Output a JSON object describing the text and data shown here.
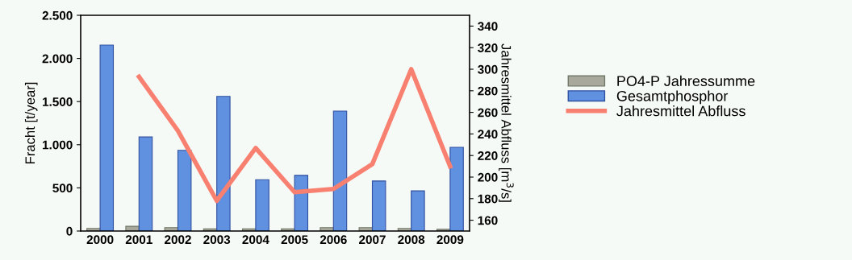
{
  "chart_data": {
    "type": "bar",
    "ylabel": "Fracht [t/year]",
    "y2label": "Jahresmittel Abfluss [m$^{3}$/s]",
    "categories": [
      "2000",
      "2001",
      "2002",
      "2003",
      "2004",
      "2005",
      "2006",
      "2007",
      "2008",
      "2009"
    ],
    "series": [
      {
        "name": "PO4-P Jahressumme",
        "color": "#a8a89c",
        "values": [
          30,
          55,
          40,
          25,
          25,
          25,
          40,
          40,
          30,
          20
        ]
      },
      {
        "name": "Gesamtphosphor",
        "color": "#6090e0",
        "values": [
          2155,
          1090,
          935,
          1560,
          595,
          645,
          1390,
          580,
          465,
          970
        ]
      },
      {
        "name": "Jahresmittel Abfluss",
        "type": "line",
        "axis": "y2",
        "color": "#f88070",
        "values": [
          null,
          293,
          243,
          178,
          227,
          186,
          189,
          212,
          300,
          210
        ]
      }
    ],
    "ylim": [
      0,
      2500
    ],
    "yticks": [
      {
        "value": 0,
        "label": "0"
      },
      {
        "value": 500,
        "label": "500"
      },
      {
        "value": 1000,
        "label": "1.000"
      },
      {
        "value": 1500,
        "label": "1.500"
      },
      {
        "value": 2000,
        "label": "2.000"
      },
      {
        "value": 2500,
        "label": "2.500"
      }
    ],
    "y2lim": [
      150,
      350
    ],
    "y2ticks": [
      160,
      180,
      200,
      220,
      240,
      260,
      280,
      300,
      320,
      340
    ],
    "grid": false,
    "legend": "right",
    "marker": "none",
    "line_style": "solid"
  }
}
